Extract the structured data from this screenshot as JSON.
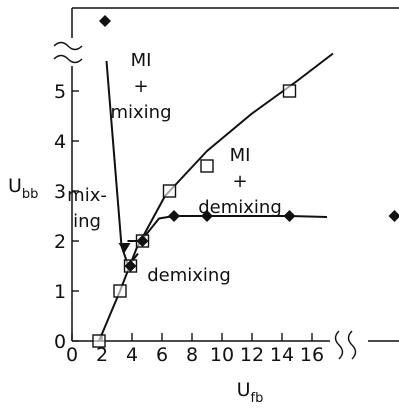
{
  "chart_data": {
    "type": "scatter",
    "title": "",
    "xlabel": {
      "main": "U",
      "sub": "fb"
    },
    "ylabel": {
      "main": "U",
      "sub": "bb"
    },
    "xlim": [
      0,
      16
    ],
    "ylim": [
      0,
      5.7
    ],
    "x_ticks": [
      "0",
      "2",
      "4",
      "6",
      "8",
      "10",
      "12",
      "14",
      "16"
    ],
    "y_ticks": [
      "0",
      "1",
      "2",
      "3",
      "4",
      "5"
    ],
    "axis_breaks": {
      "x": true,
      "y": true
    },
    "grid": false,
    "legend": "none",
    "regions": [
      {
        "lines": [
          "MI",
          "+",
          "mixing"
        ],
        "x": 4.6,
        "y": 5.5
      },
      {
        "lines": [
          "MI",
          "+",
          "demixing"
        ],
        "x": 11.2,
        "y": 3.6
      },
      {
        "lines": [
          "mix-",
          "ing"
        ],
        "x": 1.0,
        "y": 2.8
      },
      {
        "lines": [
          "demixing"
        ],
        "x": 7.8,
        "y": 1.2
      }
    ],
    "series": [
      {
        "marker": "square",
        "points": [
          [
            1.8,
            0.0
          ],
          [
            3.2,
            1.0
          ],
          [
            3.9,
            1.5
          ],
          [
            4.7,
            2.0
          ],
          [
            6.5,
            3.0
          ],
          [
            9.0,
            3.5
          ],
          [
            14.5,
            5.0
          ]
        ]
      },
      {
        "marker": "diamond",
        "points": [
          [
            3.9,
            1.5
          ],
          [
            4.7,
            2.0
          ],
          [
            6.8,
            2.5
          ],
          [
            9.0,
            2.5
          ],
          [
            14.5,
            2.5
          ]
        ]
      },
      {
        "marker": "diamond-offscale",
        "points": [
          [
            2.2,
            6.4
          ],
          [
            21.5,
            2.5
          ]
        ]
      }
    ],
    "lines": [
      {
        "name": "boundary-mi",
        "points": [
          [
            1.8,
            0.0
          ],
          [
            3.2,
            1.0
          ],
          [
            4.3,
            1.85
          ],
          [
            6.2,
            2.9
          ],
          [
            9.0,
            3.8
          ],
          [
            12.0,
            4.55
          ],
          [
            15.0,
            5.2
          ],
          [
            17.4,
            5.75
          ]
        ]
      },
      {
        "name": "boundary-demixing",
        "points": [
          [
            3.7,
            2.0
          ],
          [
            4.6,
            2.0
          ],
          [
            5.8,
            2.45
          ],
          [
            6.8,
            2.5
          ],
          [
            9.0,
            2.5
          ],
          [
            14.5,
            2.5
          ],
          [
            17.0,
            2.48
          ]
        ]
      },
      {
        "name": "boundary-mixing",
        "points": [
          [
            2.3,
            5.6
          ],
          [
            3.3,
            1.9
          ],
          [
            3.75,
            1.5
          ],
          [
            4.4,
            1.75
          ]
        ]
      }
    ],
    "arrow": {
      "from": [
        3.3,
        2.2
      ],
      "to": [
        3.5,
        1.8
      ]
    }
  }
}
